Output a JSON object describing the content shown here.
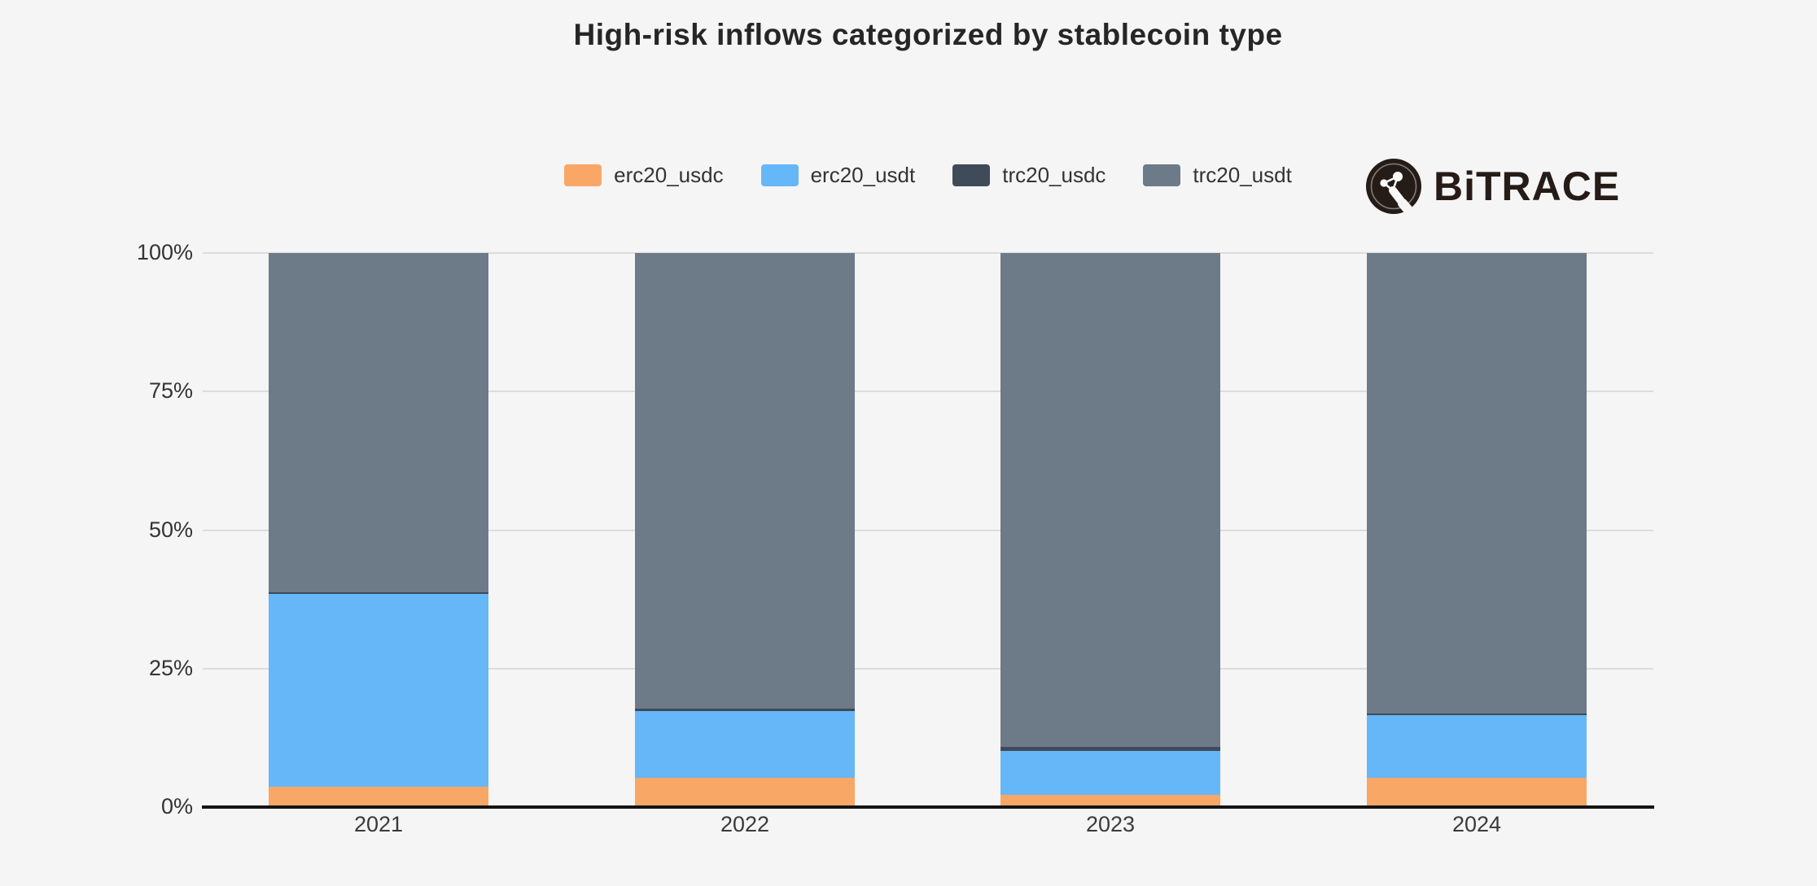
{
  "title": "High-risk inflows categorized by stablecoin type",
  "brand": {
    "name": "BiTRACE"
  },
  "colors": {
    "background": "#f5f5f5",
    "erc20_usdc": "#F8A766",
    "erc20_usdt": "#66B7F8",
    "trc20_usdc": "#3F4B59",
    "trc20_usdt": "#6D7A88",
    "grid": "#dcdcdc",
    "axis": "#141414",
    "tick_text": "#333333",
    "title_text": "#262626",
    "logo": "#251b17"
  },
  "chart_data": {
    "type": "bar",
    "stacked": true,
    "percent": true,
    "title": "High-risk inflows categorized by stablecoin type",
    "xlabel": "",
    "ylabel": "",
    "categories": [
      "2021",
      "2022",
      "2023",
      "2024"
    ],
    "series": [
      {
        "name": "erc20_usdc",
        "color": "#F8A766",
        "values": [
          3.7,
          5.3,
          2.2,
          5.3
        ]
      },
      {
        "name": "erc20_usdt",
        "color": "#66B7F8",
        "values": [
          34.8,
          12.1,
          7.9,
          11.3
        ]
      },
      {
        "name": "trc20_usdc",
        "color": "#3F4B59",
        "values": [
          0.2,
          0.3,
          0.7,
          0.3
        ]
      },
      {
        "name": "trc20_usdt",
        "color": "#6D7A88",
        "values": [
          61.3,
          82.3,
          89.2,
          83.1
        ]
      }
    ],
    "y_axis": {
      "lim": [
        0,
        100
      ],
      "ticks": [
        {
          "label": "0%",
          "value": 0
        },
        {
          "label": "25%",
          "value": 25
        },
        {
          "label": "50%",
          "value": 50
        },
        {
          "label": "75%",
          "value": 75
        },
        {
          "label": "100%",
          "value": 100
        }
      ]
    },
    "grid": true,
    "legend_position": "top-center"
  }
}
